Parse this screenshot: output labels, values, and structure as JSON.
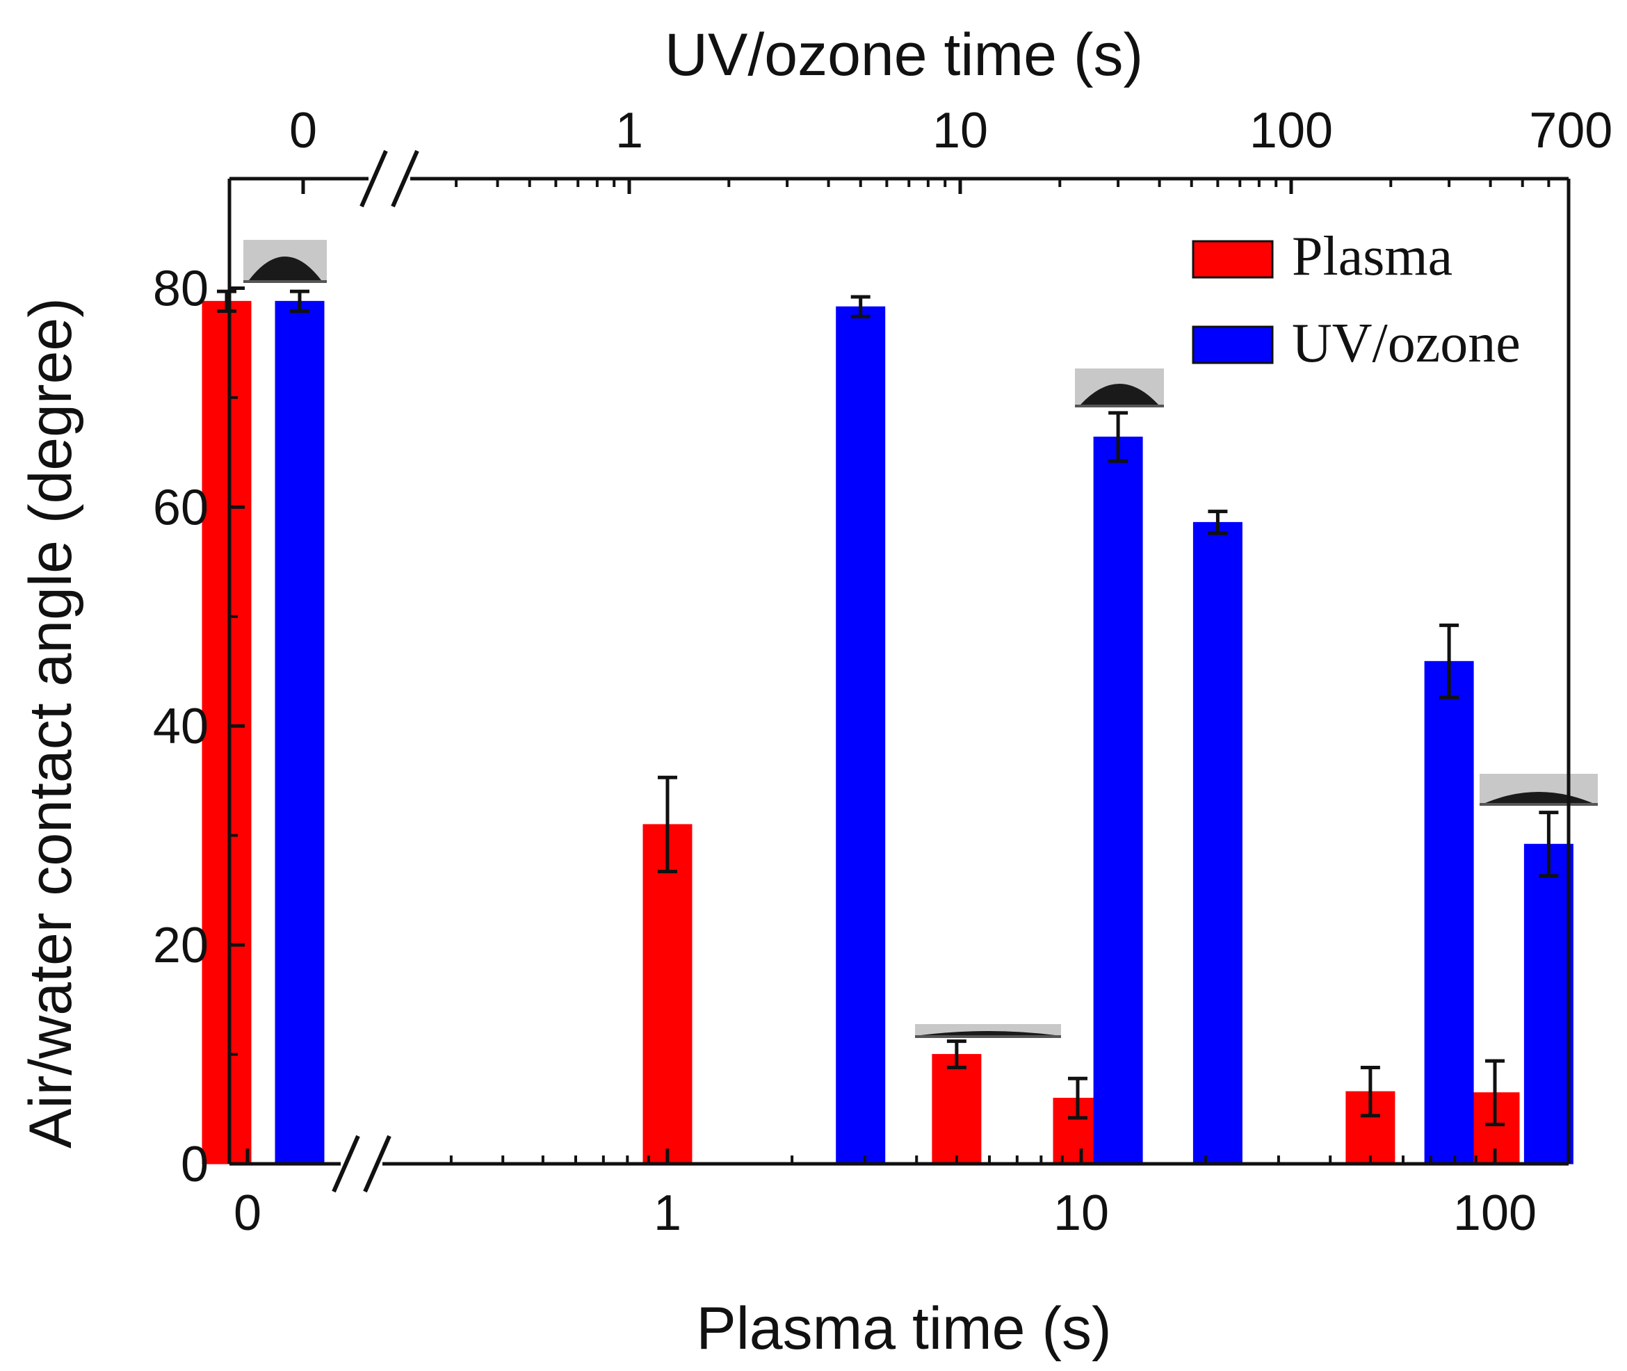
{
  "chart_data": {
    "type": "bar",
    "title": "",
    "xlabel": "Plasma time (s)",
    "x2label": "UV/ozone time (s)",
    "ylabel": "Air/water contact angle (degree)",
    "ylim": [
      0,
      90
    ],
    "yticks": [
      0,
      20,
      40,
      60,
      80
    ],
    "x_bottom_scale": "log with axis break after 0",
    "x_top_scale": "log with axis break after 0",
    "x_bottom_ticks": [
      {
        "value": 0,
        "label": "0"
      },
      {
        "value": 1,
        "label": "1"
      },
      {
        "value": 10,
        "label": "10"
      },
      {
        "value": 100,
        "label": "100"
      }
    ],
    "x_top_ticks": [
      {
        "value": 0,
        "label": "0"
      },
      {
        "value": 1,
        "label": "1"
      },
      {
        "value": 10,
        "label": "10"
      },
      {
        "value": 100,
        "label": "100"
      },
      {
        "value": 700,
        "label": "700"
      }
    ],
    "legend": {
      "position": "top-right"
    },
    "colors": {
      "plasma": "#ff0000",
      "uvozone": "#0000ff"
    },
    "series": [
      {
        "name": "Plasma",
        "axis": "bottom",
        "color": "#ff0000",
        "points": [
          {
            "time": 0,
            "value": 78.8,
            "error": 0.9
          },
          {
            "time": 1,
            "value": 31.0,
            "error": 4.3
          },
          {
            "time": 5,
            "value": 10.0,
            "error": 1.2
          },
          {
            "time": 10,
            "value": 6.0,
            "error": 1.8
          },
          {
            "time": 50,
            "value": 6.6,
            "error": 2.2
          },
          {
            "time": 100,
            "value": 6.5,
            "error": 2.9
          }
        ]
      },
      {
        "name": "UV/ozone",
        "axis": "top",
        "color": "#0000ff",
        "points": [
          {
            "time": 0,
            "value": 78.8,
            "error": 0.9
          },
          {
            "time": 5,
            "value": 78.3,
            "error": 0.9
          },
          {
            "time": 30,
            "value": 66.4,
            "error": 2.2
          },
          {
            "time": 60,
            "value": 58.6,
            "error": 1.0
          },
          {
            "time": 300,
            "value": 45.9,
            "error": 3.3
          },
          {
            "time": 600,
            "value": 29.2,
            "error": 2.9
          }
        ]
      }
    ],
    "droplet_images": [
      {
        "near": "Plasma/UV-ozone 0 s",
        "shape": "high"
      },
      {
        "near": "UV/ozone 30 s",
        "shape": "medium"
      },
      {
        "near": "Plasma 5 s",
        "shape": "flat"
      },
      {
        "near": "UV/ozone 600 s",
        "shape": "low"
      }
    ]
  }
}
